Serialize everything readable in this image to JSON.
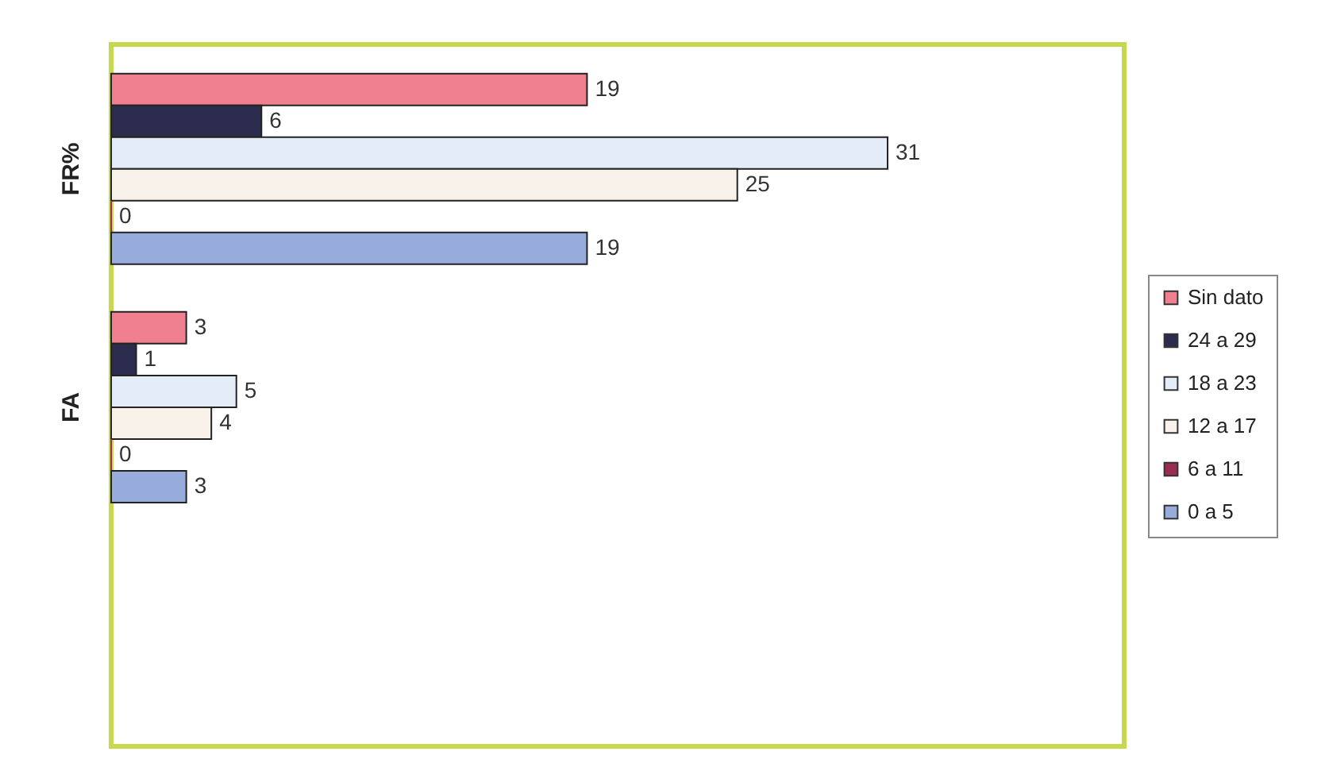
{
  "chart_data": {
    "type": "bar",
    "orientation": "horizontal",
    "categories": [
      "FR%",
      "FA"
    ],
    "series": [
      {
        "name": "Sin dato",
        "color": "#f0808f",
        "values": [
          19,
          3
        ]
      },
      {
        "name": "24 a 29",
        "color": "#2c2c4e",
        "values": [
          6,
          1
        ]
      },
      {
        "name": "18 a 23",
        "color": "#e4edf7",
        "values": [
          31,
          5
        ]
      },
      {
        "name": "12 a 17",
        "color": "#f8f2ea",
        "values": [
          25,
          4
        ]
      },
      {
        "name": "6 a 11",
        "color": "#9a2e52",
        "values": [
          0,
          0
        ]
      },
      {
        "name": "0 a 5",
        "color": "#98acdc",
        "values": [
          19,
          3
        ]
      }
    ],
    "data_labels": true,
    "legend": "right",
    "tick_labels": "y"
  }
}
